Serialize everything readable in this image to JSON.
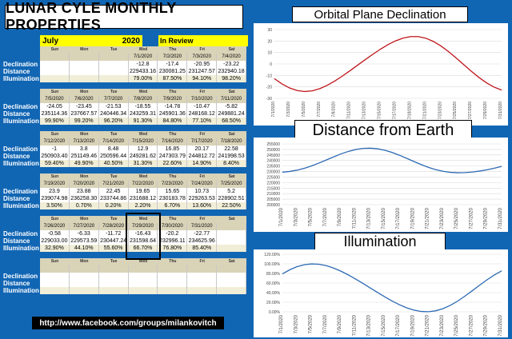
{
  "title": "LUNAR CYLE MONTHLY PROPERTIES",
  "month": "July",
  "year": "2020",
  "review_label": "In Review",
  "row_labels": [
    "Declination",
    "Distance",
    "Illumination"
  ],
  "day_headers": [
    "Sun",
    "Mon",
    "Tue",
    "Wed",
    "Thu",
    "Fri",
    "Sat"
  ],
  "weeks": [
    {
      "dates": [
        "",
        "",
        "",
        "7/1/2020",
        "7/2/2020",
        "7/3/2020",
        "7/4/2020"
      ],
      "declination": [
        "",
        "",
        "",
        "-12.8",
        "-17.4",
        "-20.95",
        "-23.22"
      ],
      "distance": [
        "",
        "",
        "",
        "229433.16",
        "230081.25",
        "231247.57",
        "232940.18"
      ],
      "illumination": [
        "",
        "",
        "",
        "79.00%",
        "87.50%",
        "94.10%",
        "98.20%"
      ]
    },
    {
      "dates": [
        "7/5/2020",
        "7/6/2020",
        "7/7/2020",
        "7/8/2020",
        "7/9/2020",
        "7/10/2020",
        "7/11/2020"
      ],
      "declination": [
        "-24.05",
        "-23.45",
        "-21.53",
        "-18.55",
        "-14.78",
        "-10.47",
        "-5.82"
      ],
      "distance": [
        "235114.36",
        "237667.57",
        "240446.34",
        "243259.31",
        "245901.36",
        "248168.12",
        "249881.24"
      ],
      "illumination": [
        "99.90%",
        "99.20%",
        "96.20%",
        "91.30%",
        "84.80%",
        "77.10%",
        "68.50%"
      ]
    },
    {
      "dates": [
        "7/12/2020",
        "7/13/2020",
        "7/14/2020",
        "7/15/2020",
        "7/16/2020",
        "7/17/2020",
        "7/18/2020"
      ],
      "declination": [
        "-1",
        "3.8",
        "8.48",
        "12.9",
        "16.85",
        "20.17",
        "22.58"
      ],
      "distance": [
        "250903.40",
        "251149.46",
        "250596.44",
        "249281.62",
        "247303.79",
        "244812.72",
        "241998.53"
      ],
      "illumination": [
        "59.40%",
        "49.90%",
        "40.50%",
        "31.30%",
        "22.60%",
        "14.90%",
        "8.40%"
      ]
    },
    {
      "dates": [
        "7/19/2020",
        "7/20/2020",
        "7/21/2020",
        "7/22/2020",
        "7/23/2020",
        "7/24/2020",
        "7/25/2020"
      ],
      "declination": [
        "23.9",
        "23.88",
        "22.45",
        "19.65",
        "15.65",
        "10.73",
        "5.2"
      ],
      "distance": [
        "239074.98",
        "236258.30",
        "233744.86",
        "231688.12",
        "230183.78",
        "229263.53",
        "228902.51"
      ],
      "illumination": [
        "3.50%",
        "0.70%",
        "0.20%",
        "2.20%",
        "6.70%",
        "13.60%",
        "22.50%"
      ]
    },
    {
      "dates": [
        "7/26/2020",
        "7/27/2020",
        "7/28/2020",
        "7/29/2020",
        "7/30/2020",
        "7/31/2020",
        ""
      ],
      "declination": [
        "-0.58",
        "-6.33",
        "-11.72",
        "-16.43",
        "-20.2",
        "-22.77",
        ""
      ],
      "distance": [
        "229033.00",
        "229573.59",
        "230447.24",
        "231598.64",
        "232996.11",
        "234625.96",
        ""
      ],
      "illumination": [
        "32.90%",
        "44.10%",
        "55.60%",
        "66.70%",
        "76.80%",
        "85.40%",
        ""
      ]
    },
    {
      "dates": [
        "",
        "",
        "",
        "",
        "",
        "",
        ""
      ],
      "declination": [
        "",
        "",
        "",
        "",
        "",
        "",
        ""
      ],
      "distance": [
        "",
        "",
        "",
        "",
        "",
        "",
        ""
      ],
      "illumination": [
        "",
        "",
        "",
        "",
        "",
        "",
        ""
      ]
    }
  ],
  "url": "http://www.facebook.com/groups/milankovitch",
  "charts_titles": {
    "declination": "Orbital Plane Declination",
    "distance": "Distance from Earth",
    "illumination": "Illumination"
  },
  "chart_data": [
    {
      "type": "line",
      "title": "Orbital Plane Declination",
      "x": [
        "7/1/2020",
        "7/2/2020",
        "7/3/2020",
        "7/4/2020",
        "7/5/2020",
        "7/6/2020",
        "7/7/2020",
        "7/8/2020",
        "7/9/2020",
        "7/10/2020",
        "7/11/2020",
        "7/12/2020",
        "7/13/2020",
        "7/14/2020",
        "7/15/2020",
        "7/16/2020",
        "7/17/2020",
        "7/18/2020",
        "7/19/2020",
        "7/20/2020",
        "7/21/2020",
        "7/22/2020",
        "7/23/2020",
        "7/24/2020",
        "7/25/2020",
        "7/26/2020",
        "7/27/2020",
        "7/28/2020",
        "7/29/2020",
        "7/30/2020",
        "7/31/2020"
      ],
      "values": [
        -12.8,
        -17.4,
        -20.95,
        -23.22,
        -24.05,
        -23.45,
        -21.53,
        -18.55,
        -14.78,
        -10.47,
        -5.82,
        -1,
        3.8,
        8.48,
        12.9,
        16.85,
        20.17,
        22.58,
        23.9,
        23.88,
        22.45,
        19.65,
        15.65,
        10.73,
        5.2,
        -0.58,
        -6.33,
        -11.72,
        -16.43,
        -20.2,
        -22.77
      ],
      "ylim": [
        -30,
        30
      ],
      "yticks": [
        -30,
        -20,
        -10,
        0,
        10,
        20,
        30
      ],
      "xticks": [
        "7/1/2020",
        "7/3/2020",
        "7/5/2020",
        "7/7/2020",
        "7/9/2020",
        "7/11/2020",
        "7/13/2020",
        "7/15/2020",
        "7/17/2020",
        "7/19/2020",
        "7/21/2020",
        "7/23/2020",
        "7/25/2020",
        "7/27/2020",
        "7/29/2020",
        "7/31/2020"
      ],
      "color": "#c0161b"
    },
    {
      "type": "line",
      "title": "Distance from Earth",
      "x": [
        "7/1/2020",
        "7/2/2020",
        "7/3/2020",
        "7/4/2020",
        "7/5/2020",
        "7/6/2020",
        "7/7/2020",
        "7/8/2020",
        "7/9/2020",
        "7/10/2020",
        "7/11/2020",
        "7/12/2020",
        "7/13/2020",
        "7/14/2020",
        "7/15/2020",
        "7/16/2020",
        "7/17/2020",
        "7/18/2020",
        "7/19/2020",
        "7/20/2020",
        "7/21/2020",
        "7/22/2020",
        "7/23/2020",
        "7/24/2020",
        "7/25/2020",
        "7/26/2020",
        "7/27/2020",
        "7/28/2020",
        "7/29/2020",
        "7/30/2020",
        "7/31/2020"
      ],
      "values": [
        229433.16,
        230081.25,
        231247.57,
        232940.18,
        235114.36,
        237667.57,
        240446.34,
        243259.31,
        245901.36,
        248168.12,
        249881.24,
        250903.4,
        251149.46,
        250596.44,
        249281.62,
        247303.79,
        244812.72,
        241998.53,
        239074.98,
        236258.3,
        233744.86,
        231688.12,
        230183.78,
        229263.53,
        228902.51,
        229033,
        229573.59,
        230447.24,
        231598.64,
        232996.11,
        234625.96
      ],
      "ylim": [
        200000,
        255000
      ],
      "yticks": [
        200000,
        205000,
        210000,
        215000,
        220000,
        225000,
        230000,
        235000,
        240000,
        245000,
        250000,
        255000
      ],
      "xticks": [
        "7/1/2020",
        "7/3/2020",
        "7/5/2020",
        "7/7/2020",
        "7/9/2020",
        "7/11/2020",
        "7/13/2020",
        "7/15/2020",
        "7/17/2020",
        "7/19/2020",
        "7/21/2020",
        "7/23/2020",
        "7/25/2020",
        "7/27/2020",
        "7/29/2020",
        "7/31/2020"
      ],
      "color": "#2e6ab3"
    },
    {
      "type": "line",
      "title": "Illumination",
      "x": [
        "7/1/2020",
        "7/2/2020",
        "7/3/2020",
        "7/4/2020",
        "7/5/2020",
        "7/6/2020",
        "7/7/2020",
        "7/8/2020",
        "7/9/2020",
        "7/10/2020",
        "7/11/2020",
        "7/12/2020",
        "7/13/2020",
        "7/14/2020",
        "7/15/2020",
        "7/16/2020",
        "7/17/2020",
        "7/18/2020",
        "7/19/2020",
        "7/20/2020",
        "7/21/2020",
        "7/22/2020",
        "7/23/2020",
        "7/24/2020",
        "7/25/2020",
        "7/26/2020",
        "7/27/2020",
        "7/28/2020",
        "7/29/2020",
        "7/30/2020",
        "7/31/2020"
      ],
      "values": [
        79,
        87.5,
        94.1,
        98.2,
        99.9,
        99.2,
        96.2,
        91.3,
        84.8,
        77.1,
        68.5,
        59.4,
        49.9,
        40.5,
        31.3,
        22.6,
        14.9,
        8.4,
        3.5,
        0.7,
        0.2,
        2.2,
        6.7,
        13.6,
        22.5,
        32.9,
        44.1,
        55.6,
        66.7,
        76.8,
        85.4
      ],
      "ylim": [
        0,
        120
      ],
      "yticks": [
        "0.00%",
        "20.00%",
        "40.00%",
        "60.00%",
        "80.00%",
        "100.00%",
        "120.00%"
      ],
      "ytick_values": [
        0,
        20,
        40,
        60,
        80,
        100,
        120
      ],
      "xticks": [
        "7/1/2020",
        "7/3/2020",
        "7/5/2020",
        "7/7/2020",
        "7/9/2020",
        "7/11/2020",
        "7/13/2020",
        "7/15/2020",
        "7/17/2020",
        "7/19/2020",
        "7/21/2020",
        "7/23/2020",
        "7/25/2020",
        "7/27/2020",
        "7/29/2020",
        "7/31/2020"
      ],
      "color": "#2e6ab3"
    }
  ]
}
